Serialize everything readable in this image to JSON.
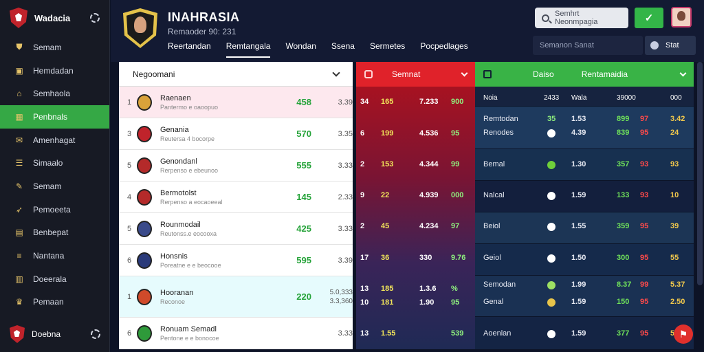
{
  "sidebar": {
    "title": "Wadacia",
    "items": [
      {
        "label": "Semam",
        "icon": "shield-icon"
      },
      {
        "label": "Hemdadan",
        "icon": "folder-icon"
      },
      {
        "label": "Semhaola",
        "icon": "home-icon"
      },
      {
        "label": "Penbnals",
        "icon": "calendar-icon",
        "active": true
      },
      {
        "label": "Amenhagat",
        "icon": "mail-icon"
      },
      {
        "label": "Simaalo",
        "icon": "list-icon"
      },
      {
        "label": "Semam",
        "icon": "pen-icon"
      },
      {
        "label": "Pemoeeta",
        "icon": "rocket-icon"
      },
      {
        "label": "Benbepat",
        "icon": "grid-icon"
      },
      {
        "label": "Nantana",
        "icon": "menu-icon"
      },
      {
        "label": "Doeerala",
        "icon": "doc-icon"
      },
      {
        "label": "Pemaan",
        "icon": "trophy-icon"
      }
    ],
    "footer_label": "Doebna"
  },
  "header": {
    "title": "INAHRASIA",
    "subtitle": "Remaoder 90: 231",
    "nav": [
      "Reertandan",
      "Remtangala",
      "Wondan",
      "Ssena",
      "Sermetes",
      "Pocpedlages"
    ],
    "search_placeholder": "Semhrt Neonmpagia",
    "field_label": "Semanon Sanat",
    "user_label": "Stat"
  },
  "standings": {
    "header": "Negoomani",
    "rows": [
      {
        "rank": "1",
        "name": "Raenaen",
        "sub": "Pantermo e oaoopuo",
        "pts": "458",
        "odds": "3.39"
      },
      {
        "rank": "3",
        "name": "Genania",
        "sub": "Reutersa 4 bocorpe",
        "pts": "570",
        "odds": "3.35"
      },
      {
        "rank": "5",
        "name": "Genondanl",
        "sub": "Rerpenso e ebeunoo",
        "pts": "555",
        "odds": "3.33"
      },
      {
        "rank": "4",
        "name": "Bermotolst",
        "sub": "Rerpenso a eocaoeeal",
        "pts": "145",
        "odds": "2.33"
      },
      {
        "rank": "5",
        "name": "Rounmodail",
        "sub": "Reutonss.e eocooxa",
        "pts": "425",
        "odds": "3.33"
      },
      {
        "rank": "6",
        "name": "Honsnis",
        "sub": "Poreatne e e beocooe",
        "pts": "595",
        "odds": "3.39"
      },
      {
        "rank": "1",
        "name": "Hooranan",
        "sub": "Reconoe",
        "pts": "220",
        "odds": "5.0,333",
        "odds_b": "3.3,360"
      },
      {
        "rank": "6",
        "name": "Ronuam Semadl",
        "sub": "Pentone e e bonocoe",
        "pts": "",
        "odds": "3.33"
      }
    ]
  },
  "redpanel": {
    "title": "Semnat",
    "rows": [
      [
        "34",
        "165",
        "7.233",
        "900"
      ],
      [
        "6",
        "199",
        "4.536",
        "95"
      ],
      [
        "2",
        "153",
        "4.344",
        "99"
      ],
      [
        "9",
        "22",
        "4.939",
        "000"
      ],
      [
        "2",
        "45",
        "4.234",
        "97"
      ],
      [
        "17",
        "36",
        "330",
        "9.76"
      ],
      [
        "13",
        "185",
        "1.3.6",
        "%"
      ],
      [
        "10",
        "181",
        "1.90",
        "95"
      ],
      [
        "13",
        "1.55",
        "",
        "539"
      ]
    ]
  },
  "rightpanel": {
    "col_a": "Daiso",
    "col_b": "Rentamaidia",
    "columns": [
      "Noia",
      "2433",
      "Wala",
      "39000",
      "000"
    ],
    "rows": [
      {
        "label": "Remtodan",
        "a": "35",
        "b": "1.53",
        "c": "899",
        "d": "97",
        "e": "3.42"
      },
      {
        "label": "Renodes",
        "a": "",
        "b": "4.39",
        "c": "839",
        "d": "95",
        "e": "24"
      },
      {
        "label": "Bemal",
        "a": "",
        "b": "1.30",
        "c": "357",
        "d": "93",
        "e": "93"
      },
      {
        "label": "Nalcal",
        "a": "",
        "b": "1.59",
        "c": "133",
        "d": "93",
        "e": "10"
      },
      {
        "label": "Beiol",
        "a": "",
        "b": "1.55",
        "c": "359",
        "d": "95",
        "e": "39"
      },
      {
        "label": "Geiol",
        "a": "",
        "b": "1.50",
        "c": "300",
        "d": "95",
        "e": "55"
      },
      {
        "label": "Semodan",
        "a": "",
        "b": "1.99",
        "c": "8.37",
        "d": "99",
        "e": "5.37"
      },
      {
        "label": "Genal",
        "a": "",
        "b": "1.59",
        "c": "150",
        "d": "95",
        "e": "2.50"
      },
      {
        "label": "Aoenlan",
        "a": "",
        "b": "1.59",
        "c": "377",
        "d": "95",
        "e": "5.3"
      }
    ]
  }
}
